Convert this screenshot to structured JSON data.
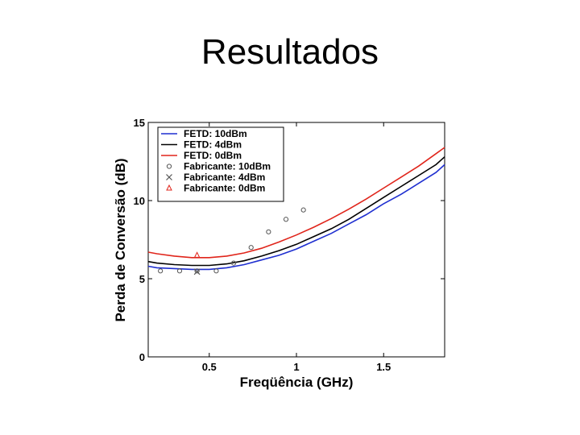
{
  "slide": {
    "title": "Resultados"
  },
  "chart_data": {
    "type": "line",
    "xlabel": "Freqüência (GHz)",
    "ylabel": "Perda de Conversão (dB)",
    "xlim": [
      0.15,
      1.85
    ],
    "ylim": [
      0,
      15
    ],
    "xticks": [
      {
        "value": 0.5,
        "label": "0.5"
      },
      {
        "value": 1,
        "label": "1"
      },
      {
        "value": 1.5,
        "label": "1.5"
      }
    ],
    "yticks": [
      {
        "value": 0,
        "label": "0"
      },
      {
        "value": 5,
        "label": "5"
      },
      {
        "value": 10,
        "label": "10"
      },
      {
        "value": 15,
        "label": "15"
      }
    ],
    "grid": false,
    "legend_position": "top-left",
    "series": [
      {
        "name": "FETD: 10dBm",
        "kind": "line",
        "color": "#1f2fd0",
        "x": [
          0.15,
          0.2,
          0.3,
          0.4,
          0.5,
          0.6,
          0.7,
          0.8,
          0.9,
          1.0,
          1.1,
          1.2,
          1.3,
          1.4,
          1.5,
          1.6,
          1.7,
          1.8,
          1.85
        ],
        "y": [
          5.8,
          5.7,
          5.65,
          5.6,
          5.6,
          5.7,
          5.9,
          6.2,
          6.5,
          6.9,
          7.4,
          7.9,
          8.5,
          9.1,
          9.8,
          10.4,
          11.1,
          11.8,
          12.3
        ]
      },
      {
        "name": "FETD: 4dBm",
        "kind": "line",
        "color": "#000000",
        "x": [
          0.15,
          0.2,
          0.3,
          0.4,
          0.5,
          0.6,
          0.7,
          0.8,
          0.9,
          1.0,
          1.1,
          1.2,
          1.3,
          1.4,
          1.5,
          1.6,
          1.7,
          1.8,
          1.85
        ],
        "y": [
          6.1,
          6.0,
          5.9,
          5.85,
          5.85,
          5.95,
          6.15,
          6.45,
          6.8,
          7.2,
          7.7,
          8.2,
          8.8,
          9.5,
          10.2,
          10.9,
          11.6,
          12.3,
          12.8
        ]
      },
      {
        "name": "FETD: 0dBm",
        "kind": "line",
        "color": "#e0251b",
        "x": [
          0.15,
          0.2,
          0.3,
          0.4,
          0.5,
          0.6,
          0.7,
          0.8,
          0.9,
          1.0,
          1.1,
          1.2,
          1.3,
          1.4,
          1.5,
          1.6,
          1.7,
          1.8,
          1.85
        ],
        "y": [
          6.7,
          6.6,
          6.45,
          6.35,
          6.35,
          6.45,
          6.65,
          6.95,
          7.35,
          7.8,
          8.3,
          8.85,
          9.45,
          10.1,
          10.8,
          11.5,
          12.2,
          13.0,
          13.4
        ]
      },
      {
        "name": "Fabricante: 10dBm",
        "kind": "marker",
        "marker": "circle",
        "color": "#555555",
        "x": [
          0.22,
          0.33,
          0.43,
          0.54,
          0.64,
          0.74,
          0.84,
          0.94,
          1.04
        ],
        "y": [
          5.5,
          5.5,
          5.5,
          5.5,
          6.0,
          7.0,
          8.0,
          8.8,
          9.4
        ]
      },
      {
        "name": "Fabricante: 4dBm",
        "kind": "marker",
        "marker": "x",
        "color": "#555555",
        "x": [
          0.43
        ],
        "y": [
          5.45
        ]
      },
      {
        "name": "Fabricante: 0dBm",
        "kind": "marker",
        "marker": "triangle",
        "color": "#e0251b",
        "x": [
          0.43
        ],
        "y": [
          6.5
        ]
      }
    ]
  }
}
